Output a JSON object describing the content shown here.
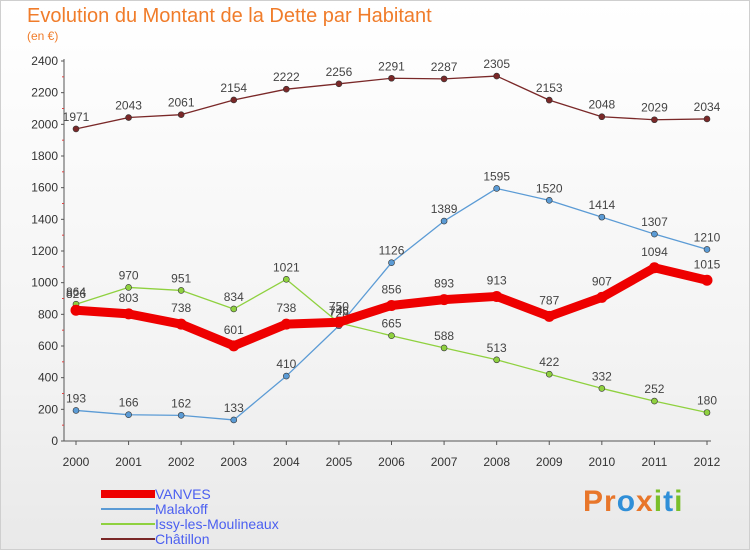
{
  "header": {
    "title": "Evolution du Montant de la Dette par Habitant",
    "unit": "(en €)"
  },
  "logo": {
    "text": "Proxiti",
    "letters": [
      "P",
      "r",
      "o",
      "x",
      "i",
      "t",
      "i"
    ],
    "colors": [
      "#e8762a",
      "#e8762a",
      "#2f8fd8",
      "#e8762a",
      "#7abf2a",
      "#2f8fd8",
      "#7abf2a"
    ]
  },
  "chart_data": {
    "type": "line",
    "title": "Evolution du Montant de la Dette par Habitant",
    "subtitle": "(en €)",
    "xlabel": "",
    "ylabel": "",
    "ylim": [
      0,
      2400
    ],
    "yticks": [
      0,
      200,
      400,
      600,
      800,
      1000,
      1200,
      1400,
      1600,
      1800,
      2000,
      2200,
      2400
    ],
    "grid": false,
    "legend_position": "bottom-left",
    "x": [
      "2000",
      "2001",
      "2002",
      "2003",
      "2004",
      "2005",
      "2006",
      "2007",
      "2008",
      "2009",
      "2010",
      "2011",
      "2012"
    ],
    "series": [
      {
        "name": "Châtillon",
        "color": "#7a2828",
        "values": [
          1971,
          2043,
          2061,
          2154,
          2222,
          2256,
          2291,
          2287,
          2305,
          2153,
          2048,
          2029,
          2034
        ]
      },
      {
        "name": "Malakoff",
        "color": "#5b9bd5",
        "values": [
          193,
          166,
          162,
          133,
          410,
          728,
          1126,
          1389,
          1595,
          1520,
          1414,
          1307,
          1210
        ]
      },
      {
        "name": "Issy-les-Moulineaux",
        "color": "#8fd13f",
        "values": [
          864,
          970,
          951,
          834,
          1021,
          746,
          665,
          588,
          513,
          422,
          332,
          252,
          180
        ]
      },
      {
        "name": "VANVES",
        "color": "#ee0000",
        "values": [
          826,
          803,
          738,
          601,
          738,
          750,
          856,
          893,
          913,
          787,
          907,
          1094,
          1015
        ]
      }
    ],
    "legend_order": [
      "VANVES",
      "Malakoff",
      "Issy-les-Moulineaux",
      "Châtillon"
    ]
  }
}
